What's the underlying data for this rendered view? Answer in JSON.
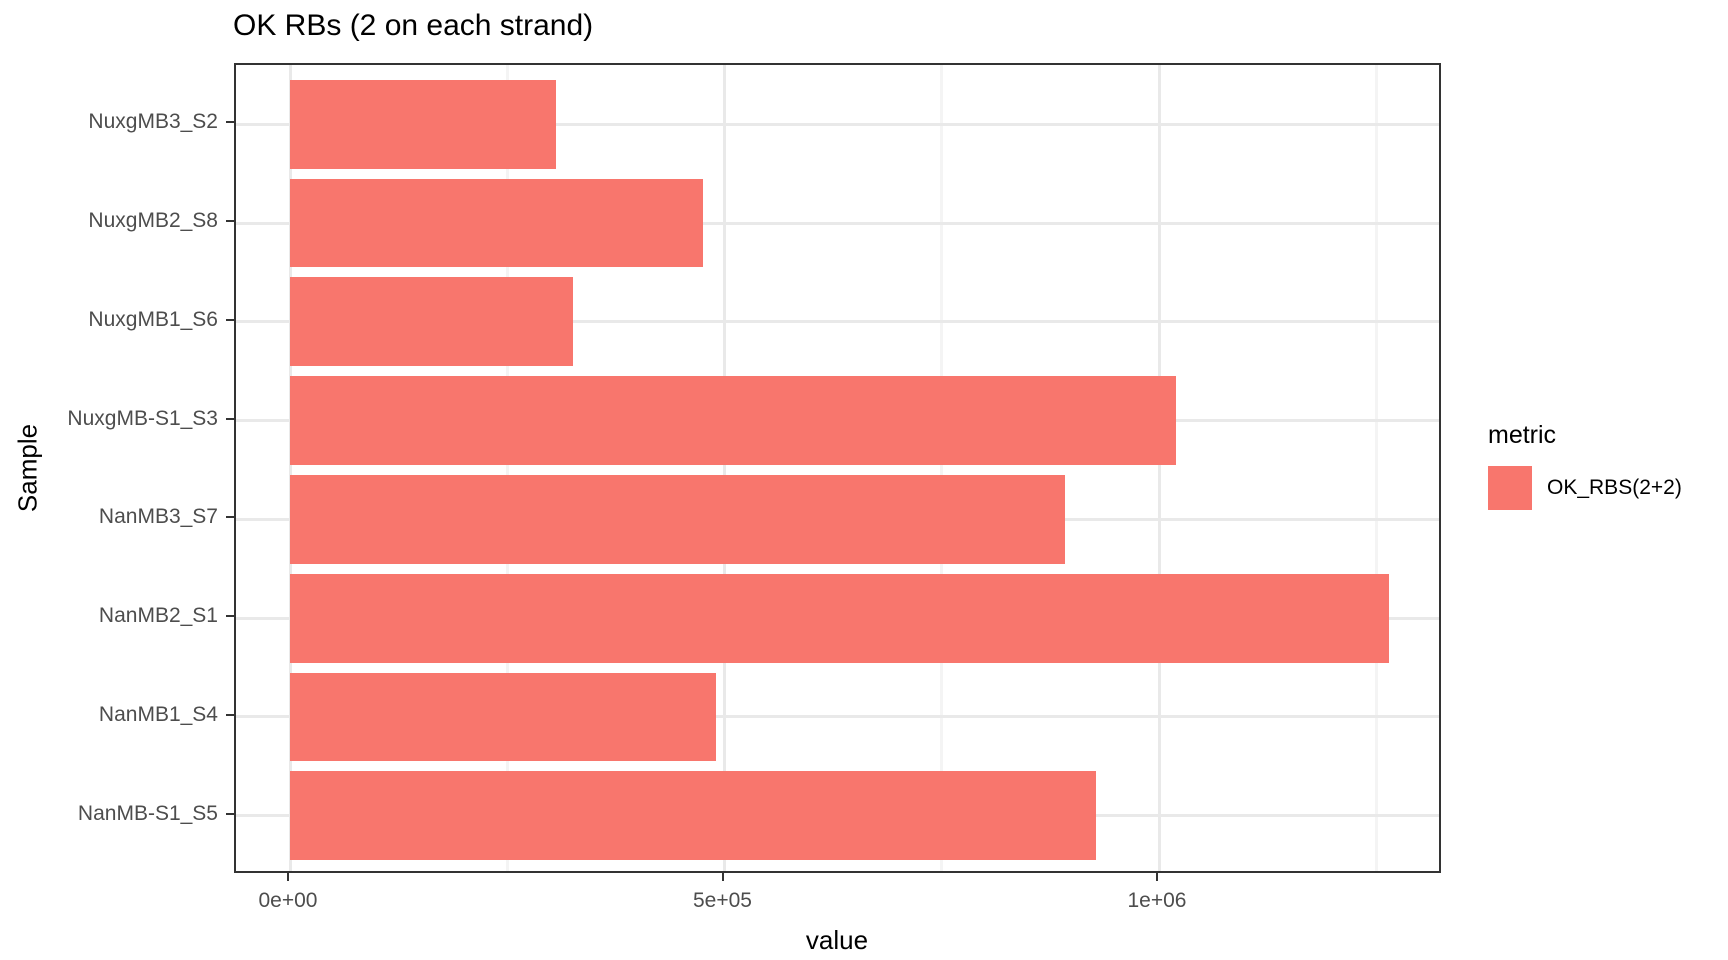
{
  "chart_data": {
    "type": "bar",
    "orientation": "horizontal",
    "title": "OK RBs (2 on each strand)",
    "xlabel": "value",
    "ylabel": "Sample",
    "categories": [
      "NuxgMB3_S2",
      "NuxgMB2_S8",
      "NuxgMB1_S6",
      "NuxgMB-S1_S3",
      "NanMB3_S7",
      "NanMB2_S1",
      "NanMB1_S4",
      "NanMB-S1_S5"
    ],
    "series": [
      {
        "name": "OK_RBS(2+2)",
        "values": [
          306000,
          475000,
          326000,
          1020000,
          892000,
          1265000,
          490000,
          927000
        ]
      }
    ],
    "xlim": [
      -63000,
      1328000
    ],
    "x_ticks": [
      {
        "label": "0e+00",
        "value": 0
      },
      {
        "label": "5e+05",
        "value": 500000
      },
      {
        "label": "1e+06",
        "value": 1000000
      }
    ],
    "x_minor_ticks": [
      250000,
      750000,
      1250000
    ],
    "grid": true,
    "legend": {
      "title": "metric",
      "position": "right",
      "entries": [
        {
          "label": "OK_RBS(2+2)",
          "color": "#F8766D"
        }
      ]
    },
    "colors": {
      "bar_fill": "#F8766D",
      "grid_major": "#E9E9E9",
      "grid_minor": "#F4F4F4",
      "panel_border": "#333333",
      "tick_mark": "#333333",
      "tick_label": "#4D4D4D",
      "text": "#000000"
    }
  }
}
